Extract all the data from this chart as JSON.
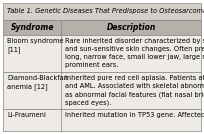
{
  "title": "Table 1. Genetic Diseases That Predispose to Osteosarcomaa",
  "columns": [
    "Syndrome",
    "Description"
  ],
  "rows": [
    {
      "syndrome": "Bloom syndrome\n[11]",
      "description": "Rare inherited disorder characterized by short s\nand sun-sensitive skin changes. Often presents w\nlong, narrow face, small lower jaw, large nose, a\nprominent ears."
    },
    {
      "syndrome": "Diamond-Blackfan\nanemia [12]",
      "description": "Inherited pure red cell aplasia. Patients at risk f\nand AML. Associated with skeletal abnormalitie\nas abnormal facial features (flat nasal bridge, wi\nspaced eyes)."
    },
    {
      "syndrome": "Li-Fraumeni",
      "description": "Inherited mutation in TP53 gene. Affected fami"
    }
  ],
  "bg_title": "#d4cfc9",
  "bg_header": "#b5b0aa",
  "bg_rows": "#eeebe7",
  "border_color": "#888480",
  "text_color": "#000000",
  "title_fontsize": 4.8,
  "header_fontsize": 5.5,
  "body_fontsize": 4.8,
  "col_split": 0.295,
  "fig_width": 2.04,
  "fig_height": 1.34,
  "dpi": 100
}
